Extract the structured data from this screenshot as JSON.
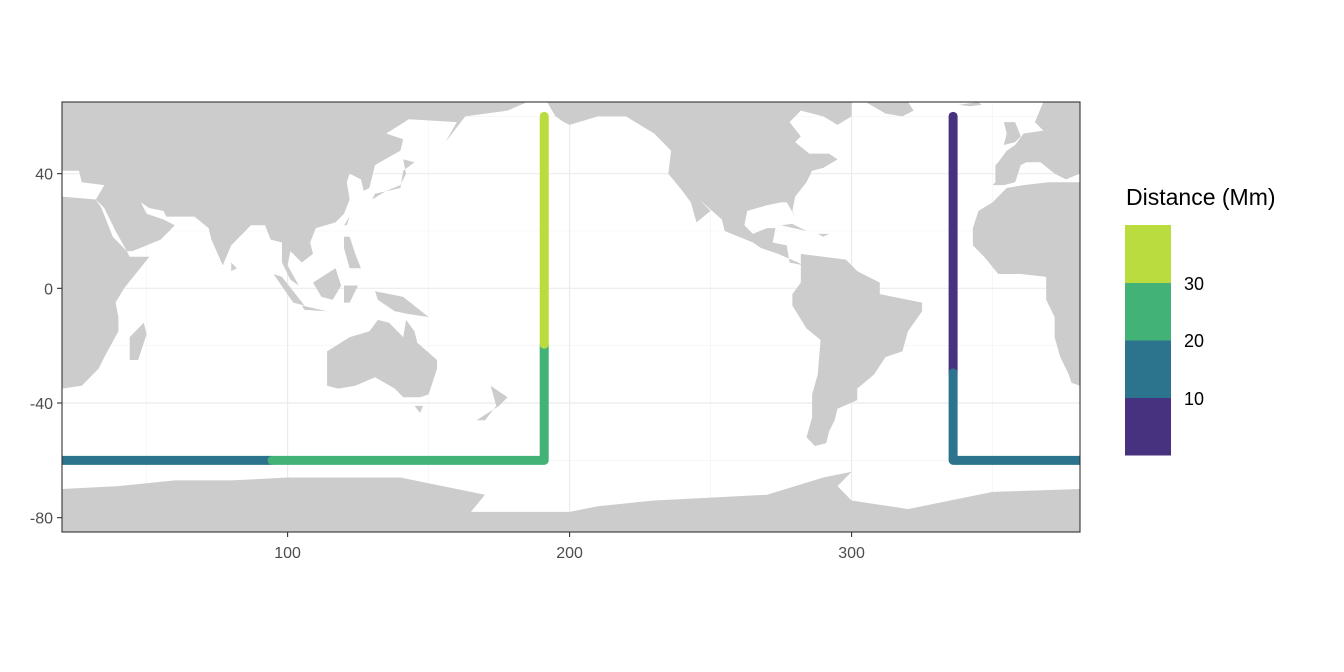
{
  "chart_data": {
    "type": "map-path",
    "title": "",
    "xlabel": "",
    "ylabel": "",
    "xlim": [
      20,
      381
    ],
    "ylim": [
      -85,
      65
    ],
    "x_ticks": [
      100,
      200,
      300
    ],
    "y_ticks": [
      -80,
      -40,
      0,
      40
    ],
    "x_tick_labels": [
      "100",
      "200",
      "300"
    ],
    "y_tick_labels": [
      "-80",
      "-40",
      "0",
      "40"
    ],
    "grid": true,
    "land_color": "#CCCCCC",
    "legend": {
      "title": "Distance (Mm)",
      "position": "right",
      "breaks": [
        "10",
        "20",
        "30"
      ],
      "bins": [
        {
          "range": [
            0,
            10
          ],
          "color": "#46327E"
        },
        {
          "range": [
            10,
            20
          ],
          "color": "#2C748E"
        },
        {
          "range": [
            20,
            30
          ],
          "color": "#43B277"
        },
        {
          "range": [
            30,
            40
          ],
          "color": "#BADC3E"
        }
      ]
    },
    "path_segments": [
      {
        "bin": 0,
        "points": [
          [
            336,
            60
          ],
          [
            336,
            -29.5
          ]
        ]
      },
      {
        "bin": 1,
        "points": [
          [
            336,
            -29.5
          ],
          [
            336,
            -60
          ],
          [
            381,
            -60
          ]
        ]
      },
      {
        "bin": 1,
        "points": [
          [
            20,
            -60
          ],
          [
            94.5,
            -60
          ]
        ]
      },
      {
        "bin": 2,
        "points": [
          [
            94.5,
            -60
          ],
          [
            191,
            -60
          ],
          [
            191,
            -19.5
          ]
        ]
      },
      {
        "bin": 3,
        "points": [
          [
            191,
            -19.5
          ],
          [
            191,
            60
          ]
        ]
      }
    ]
  }
}
